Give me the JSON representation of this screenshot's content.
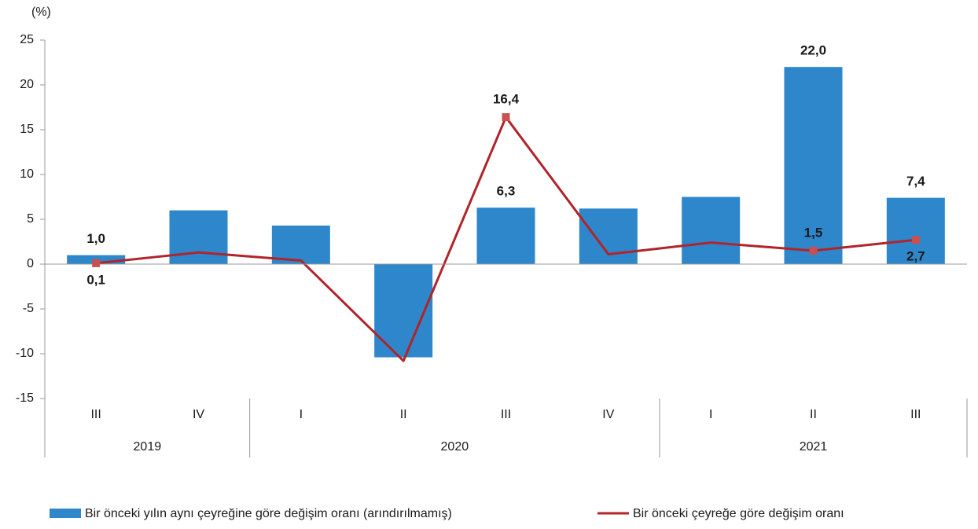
{
  "chart_data": {
    "type": "bar_line",
    "y_unit_label": "(%)",
    "categories": [
      "III",
      "IV",
      "I",
      "II",
      "III",
      "IV",
      "I",
      "II",
      "III"
    ],
    "groups": [
      {
        "label": "2019",
        "span": 2
      },
      {
        "label": "2020",
        "span": 4
      },
      {
        "label": "2021",
        "span": 3
      }
    ],
    "series": [
      {
        "name": "Bir önceki yılın aynı çeyreğine göre değişim oranı (arındırılmamış)",
        "type": "bar",
        "color": "#2e86cb",
        "values": [
          1.0,
          6.0,
          4.3,
          -10.4,
          6.3,
          6.2,
          7.5,
          22.0,
          7.4
        ],
        "value_labels": [
          "1,0",
          null,
          null,
          null,
          "6,3",
          null,
          null,
          "22,0",
          "7,4"
        ]
      },
      {
        "name": "Bir önceki çeyreğe göre değişim oranı",
        "type": "line",
        "color": "#b0242a",
        "marker_color": "#c8504f",
        "values": [
          0.1,
          1.3,
          0.4,
          -10.8,
          16.4,
          1.1,
          2.4,
          1.5,
          2.7
        ],
        "value_labels": [
          "0,1",
          null,
          null,
          null,
          "16,4",
          null,
          null,
          "1,5",
          "2,7"
        ]
      }
    ],
    "ylim": [
      -15,
      25
    ],
    "yticks": [
      -15,
      -10,
      -5,
      0,
      5,
      10,
      15,
      20,
      25
    ],
    "grid": false
  }
}
